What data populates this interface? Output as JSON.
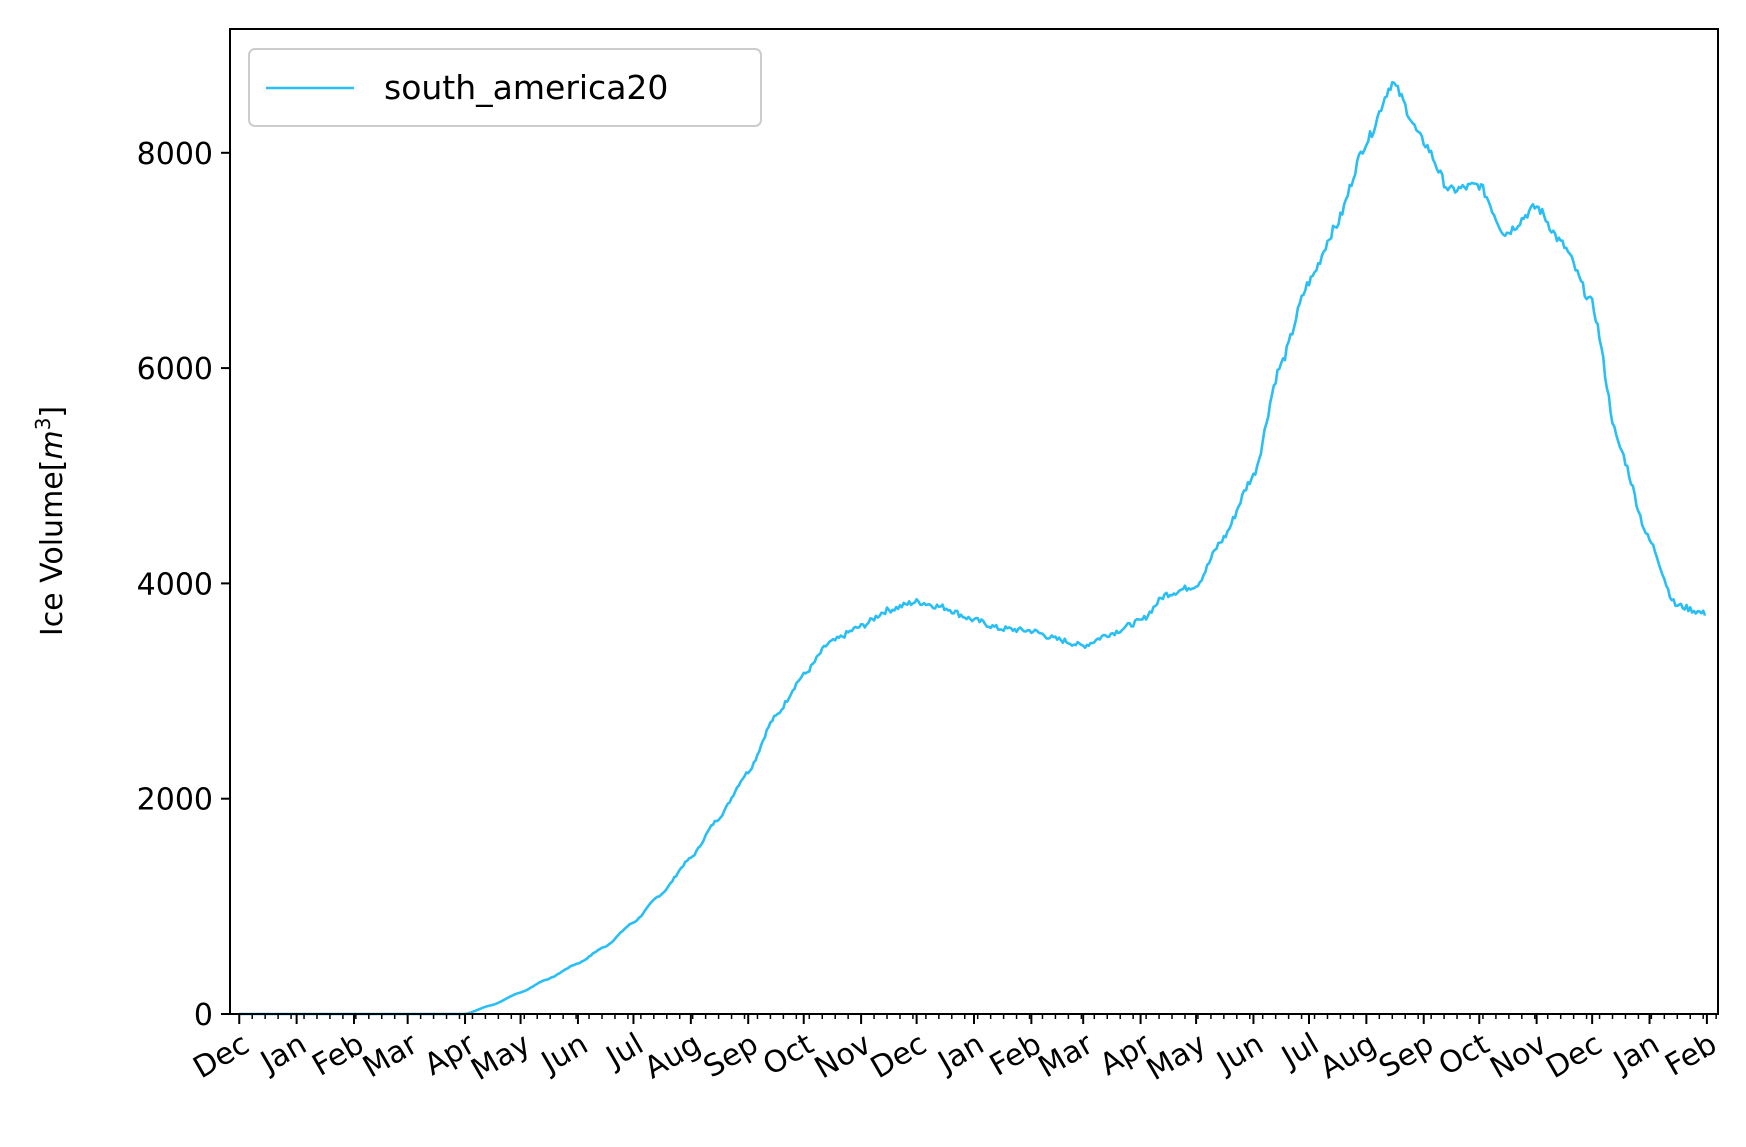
{
  "chart_data": {
    "type": "line",
    "title": "",
    "xlabel": "",
    "ylabel": "Ice Volume[m³]",
    "ylabel_base": "Ice Volume[",
    "ylabel_unit": "m",
    "ylabel_sup": "3",
    "ylabel_close": "]",
    "ylim": [
      0,
      9150
    ],
    "yticks": [
      0,
      2000,
      4000,
      6000,
      8000
    ],
    "ytick_labels": [
      "0",
      "2000",
      "4000",
      "6000",
      "8000"
    ],
    "xlim": [
      "2019-11-26",
      "2022-02-07"
    ],
    "xticks": [
      "2019-12-01",
      "2020-01-01",
      "2020-02-01",
      "2020-03-01",
      "2020-04-01",
      "2020-05-01",
      "2020-06-01",
      "2020-07-01",
      "2020-08-01",
      "2020-09-01",
      "2020-10-01",
      "2020-11-01",
      "2020-12-01",
      "2021-01-01",
      "2021-02-01",
      "2021-03-01",
      "2021-04-01",
      "2021-05-01",
      "2021-06-01",
      "2021-07-01",
      "2021-08-01",
      "2021-09-01",
      "2021-10-01",
      "2021-11-01",
      "2021-12-01",
      "2022-01-01",
      "2022-02-01"
    ],
    "xtick_labels": [
      "Dec",
      "Jan",
      "Feb",
      "Mar",
      "Apr",
      "May",
      "Jun",
      "Jul",
      "Aug",
      "Sep",
      "Oct",
      "Nov",
      "Dec",
      "Jan",
      "Feb",
      "Mar",
      "Apr",
      "May",
      "Jun",
      "Jul",
      "Aug",
      "Sep",
      "Oct",
      "Nov",
      "Dec",
      "Jan",
      "Feb"
    ],
    "grid": false,
    "legend_position": "top-left",
    "series": [
      {
        "name": "south_america20",
        "color": "#29bff5",
        "points": [
          [
            "2019-12-01",
            0
          ],
          [
            "2020-03-01",
            0
          ],
          [
            "2020-04-01",
            0
          ],
          [
            "2020-04-15",
            80
          ],
          [
            "2020-05-01",
            200
          ],
          [
            "2020-05-15",
            320
          ],
          [
            "2020-06-01",
            470
          ],
          [
            "2020-06-15",
            620
          ],
          [
            "2020-07-01",
            850
          ],
          [
            "2020-07-15",
            1100
          ],
          [
            "2020-08-01",
            1450
          ],
          [
            "2020-08-15",
            1800
          ],
          [
            "2020-09-01",
            2250
          ],
          [
            "2020-09-15",
            2750
          ],
          [
            "2020-10-01",
            3150
          ],
          [
            "2020-10-15",
            3450
          ],
          [
            "2020-11-01",
            3600
          ],
          [
            "2020-11-15",
            3750
          ],
          [
            "2020-12-01",
            3830
          ],
          [
            "2020-12-15",
            3780
          ],
          [
            "2021-01-01",
            3660
          ],
          [
            "2021-01-15",
            3580
          ],
          [
            "2021-02-01",
            3560
          ],
          [
            "2021-02-15",
            3480
          ],
          [
            "2021-03-01",
            3420
          ],
          [
            "2021-03-15",
            3530
          ],
          [
            "2021-04-01",
            3650
          ],
          [
            "2021-04-15",
            3900
          ],
          [
            "2021-05-01",
            3980
          ],
          [
            "2021-05-15",
            4400
          ],
          [
            "2021-06-01",
            5000
          ],
          [
            "2021-06-15",
            6000
          ],
          [
            "2021-07-01",
            6800
          ],
          [
            "2021-07-15",
            7300
          ],
          [
            "2021-08-01",
            8100
          ],
          [
            "2021-08-15",
            8650
          ],
          [
            "2021-09-01",
            8100
          ],
          [
            "2021-09-15",
            7650
          ],
          [
            "2021-10-01",
            7700
          ],
          [
            "2021-10-15",
            7250
          ],
          [
            "2021-11-01",
            7500
          ],
          [
            "2021-11-15",
            7150
          ],
          [
            "2021-12-01",
            6600
          ],
          [
            "2021-12-15",
            5300
          ],
          [
            "2022-01-01",
            4400
          ],
          [
            "2022-01-15",
            3800
          ],
          [
            "2022-01-31",
            3720
          ]
        ]
      }
    ]
  }
}
